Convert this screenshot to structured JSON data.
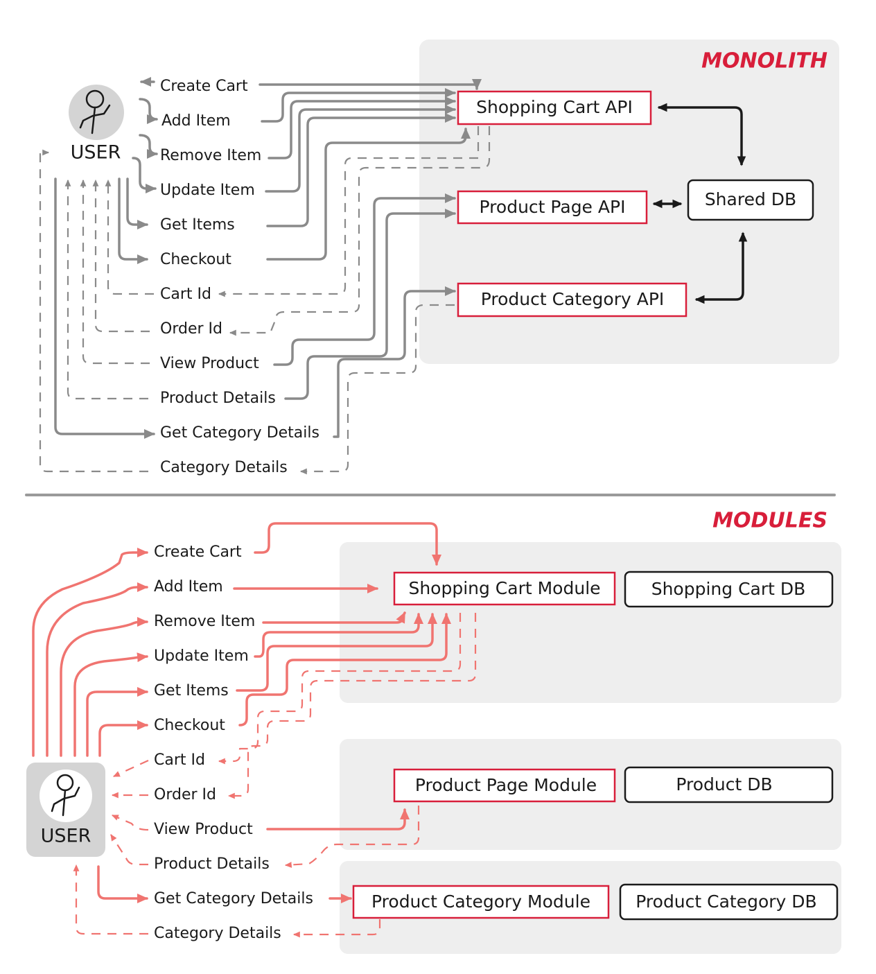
{
  "monolith": {
    "title": "MONOLITH",
    "user_label": "USER",
    "apis": {
      "shopping_cart": "Shopping Cart API",
      "product_page": "Product Page API",
      "product_category": "Product Category API"
    },
    "db": "Shared DB",
    "labels": [
      "Create Cart",
      "Add Item",
      "Remove Item",
      "Update Item",
      "Get Items",
      "Checkout",
      "Cart Id",
      "Order Id",
      "View Product",
      "Product Details",
      "Get Category Details",
      "Category Details"
    ]
  },
  "modules": {
    "title": "MODULES",
    "user_label": "USER",
    "modules": {
      "shopping_cart": "Shopping Cart Module",
      "product_page": "Product Page Module",
      "product_category": "Product Category Module"
    },
    "dbs": {
      "shopping_cart": "Shopping Cart DB",
      "product": "Product DB",
      "product_category": "Product Category DB"
    },
    "labels": [
      "Create Cart",
      "Add Item",
      "Remove Item",
      "Update Item",
      "Get Items",
      "Checkout",
      "Cart Id",
      "Order Id",
      "View Product",
      "Product Details",
      "Get Category Details",
      "Category Details"
    ]
  },
  "colors": {
    "accent_red": "#d81e3a",
    "flow_grey": "#8a8a8a",
    "flow_salmon": "#f07470",
    "panel": "#eeeeee"
  },
  "icons": [
    "user-stick-figure-icon"
  ]
}
